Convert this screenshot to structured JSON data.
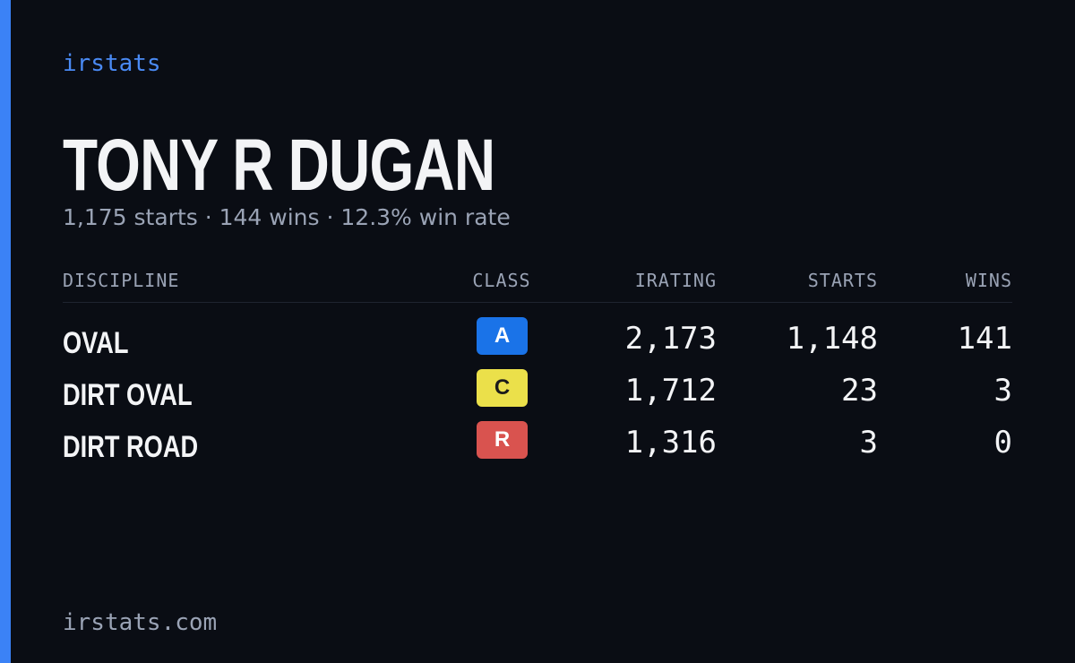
{
  "brand": "irstats",
  "driver": {
    "name": "TONY R DUGAN",
    "summary": "1,175 starts · 144 wins · 12.3% win rate"
  },
  "table": {
    "headers": [
      "DISCIPLINE",
      "CLASS",
      "IRATING",
      "STARTS",
      "WINS"
    ],
    "rows": [
      {
        "discipline": "OVAL",
        "class": "A",
        "class_color": "#1a73e8",
        "class_text_color": "#ffffff",
        "irating": "2,173",
        "starts": "1,148",
        "wins": "141"
      },
      {
        "discipline": "DIRT OVAL",
        "class": "C",
        "class_color": "#ebe04a",
        "class_text_color": "#1b1b1b",
        "irating": "1,712",
        "starts": "23",
        "wins": "3"
      },
      {
        "discipline": "DIRT ROAD",
        "class": "R",
        "class_color": "#d9534f",
        "class_text_color": "#ffffff",
        "irating": "1,316",
        "starts": "3",
        "wins": "0"
      }
    ]
  },
  "footer": "irstats.com"
}
